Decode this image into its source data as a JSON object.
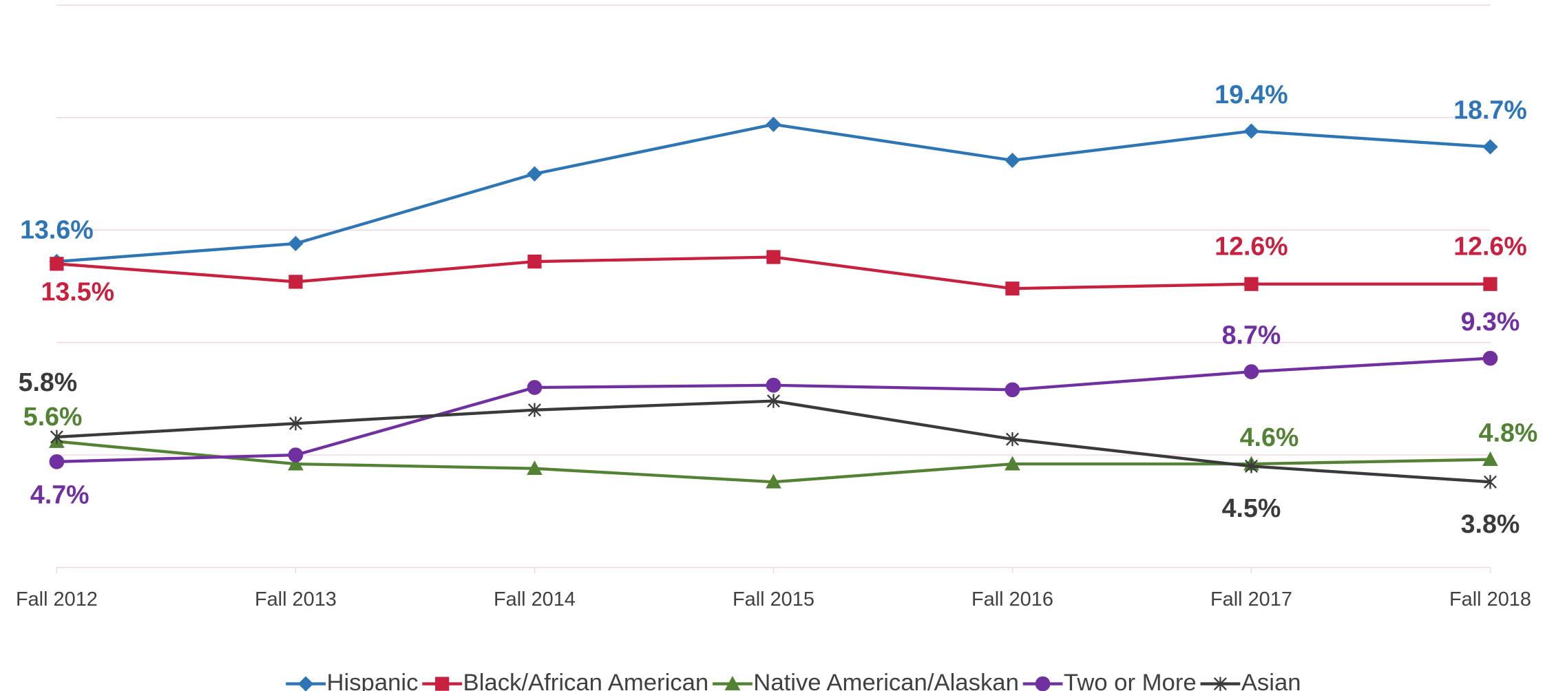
{
  "chart_data": {
    "type": "line",
    "categories": [
      "Fall 2012",
      "Fall 2013",
      "Fall 2014",
      "Fall 2015",
      "Fall 2016",
      "Fall 2017",
      "Fall 2018"
    ],
    "ylim": [
      0,
      25
    ],
    "yticks": [
      0,
      5,
      10,
      15,
      20,
      25
    ],
    "grid": true,
    "legend": "bottom",
    "series": [
      {
        "name": "Hispanic",
        "color": "#2e75b6",
        "marker": "diamond",
        "values": [
          13.6,
          14.4,
          17.5,
          19.7,
          18.1,
          19.4,
          18.7
        ],
        "value_labels": [
          "13.6%",
          null,
          null,
          null,
          null,
          "19.4%",
          "18.7%"
        ]
      },
      {
        "name": "Black/African American",
        "color": "#c8203f",
        "marker": "square",
        "values": [
          13.5,
          12.7,
          13.6,
          13.8,
          12.4,
          12.6,
          12.6
        ],
        "value_labels": [
          "13.5%",
          null,
          null,
          null,
          null,
          "12.6%",
          "12.6%"
        ]
      },
      {
        "name": "Native American/Alaskan",
        "color": "#548235",
        "marker": "triangle",
        "values": [
          5.6,
          4.6,
          4.4,
          3.8,
          4.6,
          4.6,
          4.8
        ],
        "value_labels": [
          "5.6%",
          null,
          null,
          null,
          null,
          "4.6%",
          "4.8%"
        ]
      },
      {
        "name": "Two or More",
        "color": "#7030a0",
        "marker": "circle",
        "values": [
          4.7,
          5.0,
          8.0,
          8.1,
          7.9,
          8.7,
          9.3
        ],
        "value_labels": [
          "4.7%",
          null,
          null,
          null,
          null,
          "8.7%",
          "9.3%"
        ]
      },
      {
        "name": "Asian",
        "color": "#3a3a3a",
        "marker": "star",
        "values": [
          5.8,
          6.4,
          7.0,
          7.4,
          5.7,
          4.5,
          3.8
        ],
        "value_labels": [
          "5.8%",
          null,
          null,
          null,
          null,
          "4.5%",
          "3.8%"
        ]
      }
    ]
  }
}
